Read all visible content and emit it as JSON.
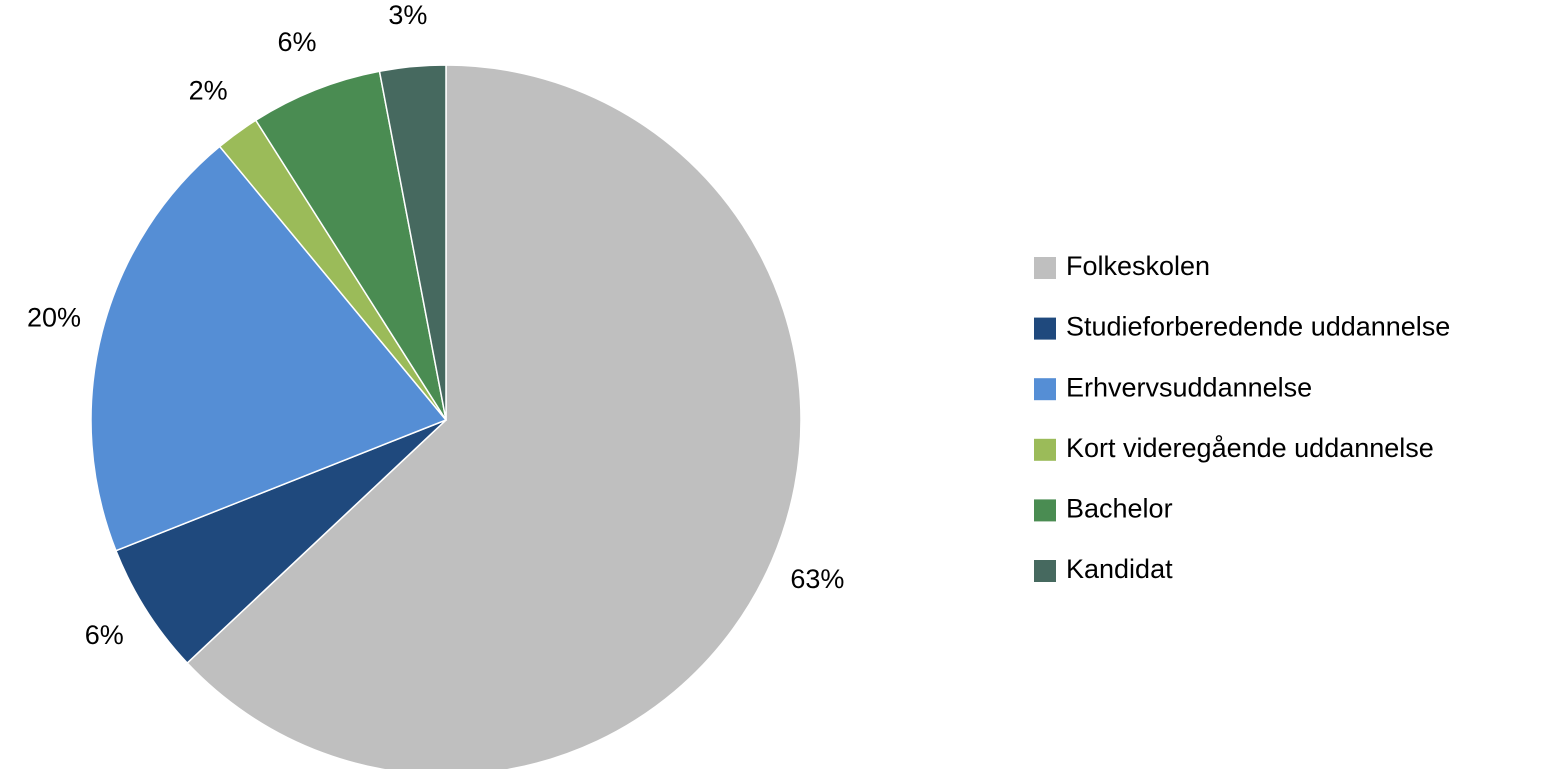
{
  "chart_data": {
    "type": "pie",
    "categories": [
      "Folkeskolen",
      "Studieforberedende uddannelse",
      "Erhvervsuddannelse",
      "Kort videregående uddannelse",
      "Bachelor",
      "Kandidat"
    ],
    "values": [
      63,
      6,
      20,
      2,
      6,
      3
    ],
    "value_labels": [
      "63%",
      "6%",
      "20%",
      "2%",
      "6%",
      "3%"
    ],
    "colors": [
      "#bfbfbf",
      "#1f497d",
      "#558ed5",
      "#9bbb59",
      "#4a8c52",
      "#46695f"
    ],
    "legend": "right"
  }
}
